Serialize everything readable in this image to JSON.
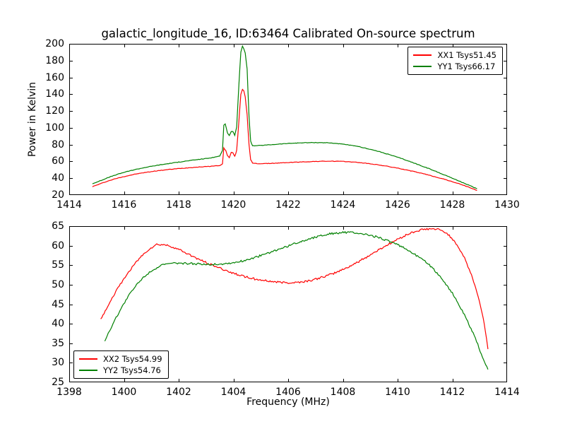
{
  "chart_data": [
    {
      "type": "line",
      "title": "galactic_longitude_16, ID:63464 Calibrated On-source spectrum",
      "xlabel": "",
      "ylabel": "Power in Kelvin",
      "xlim": [
        1414,
        1430
      ],
      "ylim": [
        20,
        200
      ],
      "xticks": [
        1414,
        1416,
        1418,
        1420,
        1422,
        1424,
        1426,
        1428,
        1430
      ],
      "yticks": [
        20,
        40,
        60,
        80,
        100,
        120,
        140,
        160,
        180,
        200
      ],
      "grid": false,
      "legend_position": "upper right",
      "series": [
        {
          "name": "XX1",
          "label": "XX1 Tsys51.45",
          "color": "#ff0000",
          "noise": 0.3,
          "points": [
            [
              1414.85,
              30
            ],
            [
              1415.1,
              33
            ],
            [
              1415.4,
              36.5
            ],
            [
              1415.7,
              39.5
            ],
            [
              1416,
              42
            ],
            [
              1416.4,
              44.8
            ],
            [
              1416.8,
              47
            ],
            [
              1417.2,
              48.8
            ],
            [
              1417.6,
              50.3
            ],
            [
              1418,
              51.5
            ],
            [
              1418.4,
              52.6
            ],
            [
              1418.8,
              53.5
            ],
            [
              1419.2,
              54.3
            ],
            [
              1419.5,
              55.2
            ],
            [
              1419.6,
              57
            ],
            [
              1419.65,
              76
            ],
            [
              1419.72,
              73
            ],
            [
              1419.78,
              67
            ],
            [
              1419.85,
              64.5
            ],
            [
              1419.92,
              70.5
            ],
            [
              1419.98,
              70.5
            ],
            [
              1420.05,
              66
            ],
            [
              1420.12,
              73
            ],
            [
              1420.2,
              108
            ],
            [
              1420.27,
              140
            ],
            [
              1420.33,
              146
            ],
            [
              1420.38,
              144
            ],
            [
              1420.43,
              137
            ],
            [
              1420.5,
              116
            ],
            [
              1420.57,
              80
            ],
            [
              1420.63,
              62
            ],
            [
              1420.7,
              58
            ],
            [
              1420.9,
              57.3
            ],
            [
              1421.2,
              57.5
            ],
            [
              1421.6,
              58
            ],
            [
              1422,
              58.7
            ],
            [
              1422.5,
              59.4
            ],
            [
              1423,
              60
            ],
            [
              1423.4,
              60.3
            ],
            [
              1423.8,
              60.2
            ],
            [
              1424.2,
              59.7
            ],
            [
              1424.6,
              58.7
            ],
            [
              1425,
              57.2
            ],
            [
              1425.4,
              55.4
            ],
            [
              1425.8,
              53.2
            ],
            [
              1426.2,
              50.7
            ],
            [
              1426.6,
              47.9
            ],
            [
              1427,
              44.9
            ],
            [
              1427.4,
              41.5
            ],
            [
              1427.8,
              37.9
            ],
            [
              1428.2,
              33.9
            ],
            [
              1428.6,
              29.4
            ],
            [
              1428.9,
              25.5
            ]
          ]
        },
        {
          "name": "YY1",
          "label": "YY1 Tsys66.17",
          "color": "#008000",
          "noise": 0.3,
          "points": [
            [
              1414.85,
              33.5
            ],
            [
              1415.1,
              36.5
            ],
            [
              1415.4,
              40.5
            ],
            [
              1415.7,
              44
            ],
            [
              1416,
              47
            ],
            [
              1416.4,
              50.3
            ],
            [
              1416.8,
              53
            ],
            [
              1417.2,
              55.3
            ],
            [
              1417.6,
              57.3
            ],
            [
              1418,
              59.2
            ],
            [
              1418.4,
              61
            ],
            [
              1418.8,
              62.7
            ],
            [
              1419.2,
              64.3
            ],
            [
              1419.5,
              66.5
            ],
            [
              1419.6,
              73
            ],
            [
              1419.65,
              103
            ],
            [
              1419.7,
              105
            ],
            [
              1419.78,
              94
            ],
            [
              1419.85,
              91
            ],
            [
              1419.92,
              95.5
            ],
            [
              1419.98,
              95.5
            ],
            [
              1420.05,
              91
            ],
            [
              1420.12,
              101
            ],
            [
              1420.2,
              152
            ],
            [
              1420.27,
              190
            ],
            [
              1420.33,
              197.5
            ],
            [
              1420.38,
              194
            ],
            [
              1420.43,
              189
            ],
            [
              1420.5,
              170
            ],
            [
              1420.57,
              114
            ],
            [
              1420.63,
              84
            ],
            [
              1420.7,
              78.5
            ],
            [
              1420.9,
              78.8
            ],
            [
              1421.2,
              79.5
            ],
            [
              1421.6,
              80.5
            ],
            [
              1422,
              81.4
            ],
            [
              1422.5,
              82.2
            ],
            [
              1423,
              82.5
            ],
            [
              1423.4,
              82.3
            ],
            [
              1423.8,
              81.3
            ],
            [
              1424.2,
              79.7
            ],
            [
              1424.6,
              77.4
            ],
            [
              1425,
              74.5
            ],
            [
              1425.4,
              71
            ],
            [
              1425.8,
              67.1
            ],
            [
              1426.2,
              62.8
            ],
            [
              1426.6,
              58.1
            ],
            [
              1427,
              53.2
            ],
            [
              1427.4,
              48.1
            ],
            [
              1427.8,
              42.8
            ],
            [
              1428.2,
              37.3
            ],
            [
              1428.6,
              31.7
            ],
            [
              1428.9,
              27.5
            ]
          ]
        }
      ]
    },
    {
      "type": "line",
      "title": "",
      "xlabel": "Frequency (MHz)",
      "ylabel": "",
      "xlim": [
        1398,
        1414
      ],
      "ylim": [
        25,
        65
      ],
      "xticks": [
        1398,
        1400,
        1402,
        1404,
        1406,
        1408,
        1410,
        1412,
        1414
      ],
      "yticks": [
        25,
        30,
        35,
        40,
        45,
        50,
        55,
        60,
        65
      ],
      "grid": false,
      "legend_position": "lower left",
      "series": [
        {
          "name": "XX2",
          "label": "XX2 Tsys54.99",
          "color": "#ff0000",
          "noise": 0.25,
          "points": [
            [
              1399.15,
              41
            ],
            [
              1399.4,
              44.5
            ],
            [
              1399.7,
              48.2
            ],
            [
              1400,
              51.5
            ],
            [
              1400.3,
              54.5
            ],
            [
              1400.6,
              57
            ],
            [
              1400.9,
              59
            ],
            [
              1401.2,
              60.3
            ],
            [
              1401.5,
              60.2
            ],
            [
              1401.8,
              59.6
            ],
            [
              1402.1,
              58.7
            ],
            [
              1402.5,
              57.3
            ],
            [
              1402.9,
              56
            ],
            [
              1403.3,
              54.8
            ],
            [
              1403.7,
              53.7
            ],
            [
              1404.1,
              52.7
            ],
            [
              1404.5,
              51.9
            ],
            [
              1404.9,
              51.3
            ],
            [
              1405.3,
              50.9
            ],
            [
              1405.7,
              50.6
            ],
            [
              1406.1,
              50.5
            ],
            [
              1406.5,
              50.7
            ],
            [
              1406.9,
              51.2
            ],
            [
              1407.3,
              52
            ],
            [
              1407.7,
              53
            ],
            [
              1408.1,
              54.2
            ],
            [
              1408.5,
              55.6
            ],
            [
              1408.9,
              57.2
            ],
            [
              1409.3,
              58.9
            ],
            [
              1409.7,
              60.5
            ],
            [
              1410.1,
              62
            ],
            [
              1410.5,
              63.3
            ],
            [
              1410.9,
              64.1
            ],
            [
              1411.2,
              64.3
            ],
            [
              1411.5,
              64.1
            ],
            [
              1411.8,
              63.2
            ],
            [
              1412.1,
              61
            ],
            [
              1412.4,
              57.5
            ],
            [
              1412.7,
              52.5
            ],
            [
              1412.9,
              48
            ],
            [
              1413.1,
              42.5
            ],
            [
              1413.2,
              38.5
            ],
            [
              1413.3,
              33.5
            ]
          ]
        },
        {
          "name": "YY2",
          "label": "YY2 Tsys54.76",
          "color": "#008000",
          "noise": 0.25,
          "points": [
            [
              1399.3,
              35.7
            ],
            [
              1399.6,
              40
            ],
            [
              1399.9,
              44
            ],
            [
              1400.2,
              47.5
            ],
            [
              1400.5,
              50.3
            ],
            [
              1400.8,
              52.5
            ],
            [
              1401.1,
              54
            ],
            [
              1401.4,
              55
            ],
            [
              1401.7,
              55.4
            ],
            [
              1402,
              55.5
            ],
            [
              1402.4,
              55.4
            ],
            [
              1402.8,
              55.3
            ],
            [
              1403.2,
              55.2
            ],
            [
              1403.6,
              55.3
            ],
            [
              1404,
              55.6
            ],
            [
              1404.4,
              56.2
            ],
            [
              1404.8,
              57
            ],
            [
              1405.2,
              57.9
            ],
            [
              1405.6,
              58.9
            ],
            [
              1406,
              59.9
            ],
            [
              1406.4,
              60.9
            ],
            [
              1406.8,
              61.8
            ],
            [
              1407.2,
              62.6
            ],
            [
              1407.6,
              63.1
            ],
            [
              1408,
              63.4
            ],
            [
              1408.4,
              63.3
            ],
            [
              1408.8,
              62.9
            ],
            [
              1409.2,
              62.3
            ],
            [
              1409.6,
              61.4
            ],
            [
              1410,
              60.2
            ],
            [
              1410.4,
              58.8
            ],
            [
              1410.8,
              57
            ],
            [
              1411.2,
              54.8
            ],
            [
              1411.6,
              51.8
            ],
            [
              1412,
              47.8
            ],
            [
              1412.4,
              42.8
            ],
            [
              1412.8,
              37
            ],
            [
              1413.1,
              31.5
            ],
            [
              1413.3,
              28.3
            ]
          ]
        }
      ]
    }
  ],
  "style": {
    "axis_color": "#000000",
    "background": "#ffffff"
  }
}
